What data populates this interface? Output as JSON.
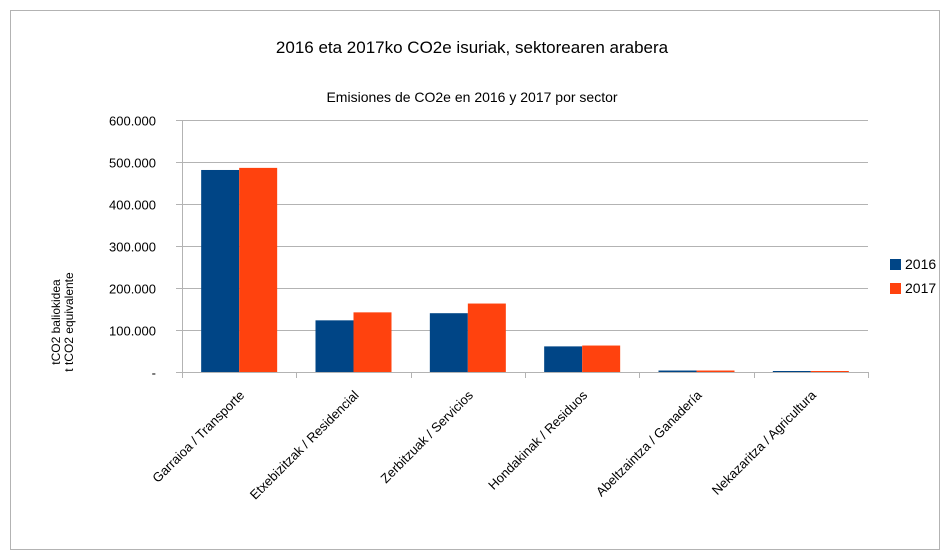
{
  "chart_data": {
    "type": "bar",
    "title": "2016 eta 2017ko CO2e isuriak, sektorearen arabera",
    "subtitle": "Emisiones de CO2e en 2016 y 2017 por sector",
    "ylabel_lines": [
      "tCO2 baliokidea",
      "t tCO2 equivalente"
    ],
    "xlabel": "",
    "categories": [
      "Garraioa / Transporte",
      "Etxebizitzak / Residencial",
      "Zerbitzuak / Servicios",
      "Hondakinak / Residuos",
      "Abeltzaintza / Ganadería",
      "Nekazaritza / Agricultura"
    ],
    "series": [
      {
        "name": "2016",
        "color": "#004586",
        "values": [
          481000,
          123000,
          140000,
          61000,
          3500,
          1500
        ]
      },
      {
        "name": "2017",
        "color": "#ff420e",
        "values": [
          486000,
          142000,
          163000,
          63000,
          3500,
          1500
        ]
      }
    ],
    "ylim": [
      0,
      600000
    ],
    "yticks": [
      {
        "value": 0,
        "label": "-"
      },
      {
        "value": 100000,
        "label": "100.000"
      },
      {
        "value": 200000,
        "label": "200.000"
      },
      {
        "value": 300000,
        "label": "300.000"
      },
      {
        "value": 400000,
        "label": "400.000"
      },
      {
        "value": 500000,
        "label": "500.000"
      },
      {
        "value": 600000,
        "label": "600.000"
      }
    ],
    "grid": true,
    "legend_position": "right"
  }
}
